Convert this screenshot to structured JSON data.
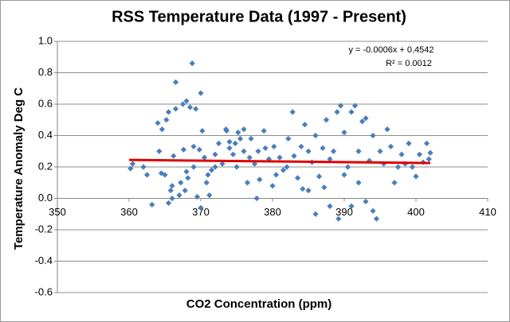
{
  "chart_data": {
    "type": "scatter",
    "title": "RSS Temperature Data (1997 - Present)",
    "x_label": "CO2 Concentration (ppm)",
    "y_label": "Temperature Anomaly Deg C",
    "annotations": [
      "y = -0.0006x + 0.4542",
      "R² = 0.0012"
    ],
    "color": "#4a7ebb",
    "x": [
      360.2,
      360.5,
      362,
      362.5,
      363.2,
      364,
      364.2,
      364.5,
      364.6,
      365,
      365.2,
      365.5,
      365.8,
      365.5,
      366,
      366,
      366.2,
      366.5,
      366.5,
      367,
      367.2,
      367.5,
      367.6,
      367.8,
      368,
      368,
      368.2,
      368.5,
      368.8,
      369,
      369,
      369.3,
      369.5,
      369.8,
      370,
      370,
      370.2,
      370.5,
      370.8,
      371,
      371.2,
      371.5,
      372,
      372,
      372.5,
      373,
      373.5,
      373.6,
      374,
      374,
      374.5,
      374.8,
      375,
      375.2,
      375.5,
      376,
      376,
      376.5,
      376.8,
      377,
      377.5,
      377.8,
      378,
      378.2,
      378.8,
      379,
      379.5,
      380,
      380.2,
      380.5,
      381,
      381.5,
      382,
      382.2,
      382.8,
      383,
      383.5,
      384,
      384.2,
      384.5,
      385,
      385,
      385.5,
      386,
      386,
      386.5,
      387,
      387.2,
      387.5,
      388,
      388,
      388.5,
      389,
      389.2,
      389.5,
      390,
      390,
      390.5,
      391,
      391,
      391.5,
      392,
      392,
      392.5,
      393,
      393,
      393.5,
      394,
      394,
      394.5,
      395,
      395.5,
      396,
      396.5,
      397,
      397.5,
      398,
      398.5,
      399,
      399.5,
      400,
      400.5,
      401,
      401.5,
      402,
      401.8
    ],
    "values": [
      0.19,
      0.22,
      0.2,
      0.15,
      -0.04,
      0.48,
      0.3,
      0.16,
      0.44,
      0.15,
      0.5,
      0.55,
      0.05,
      -0.03,
      0.0,
      0.08,
      0.27,
      0.74,
      0.57,
      0.02,
      0.1,
      0.6,
      0.31,
      0.05,
      0.62,
      0.17,
      0.13,
      0.58,
      0.86,
      0.33,
      0.2,
      0.57,
      0.01,
      0.31,
      0.67,
      -0.06,
      0.43,
      0.26,
      0.1,
      0.15,
      0.02,
      0.18,
      0.28,
      0.2,
      0.35,
      0.22,
      0.44,
      0.43,
      0.36,
      0.32,
      0.28,
      0.35,
      0.2,
      0.42,
      0.38,
      0.44,
      0.3,
      0.1,
      0.26,
      0.38,
      0.22,
      0.0,
      0.3,
      0.12,
      0.43,
      0.32,
      0.25,
      0.08,
      0.33,
      0.15,
      0.26,
      0.18,
      0.2,
      0.38,
      0.55,
      0.27,
      0.13,
      0.33,
      0.06,
      0.47,
      0.05,
      0.3,
      0.23,
      -0.1,
      0.4,
      0.14,
      0.32,
      0.07,
      0.5,
      0.25,
      -0.05,
      0.3,
      0.55,
      -0.13,
      0.59,
      0.15,
      0.42,
      0.2,
      0.55,
      -0.05,
      0.59,
      0.1,
      0.3,
      0.49,
      0.51,
      -0.02,
      0.24,
      -0.08,
      0.4,
      -0.13,
      0.3,
      0.22,
      0.44,
      0.33,
      0.1,
      0.2,
      0.28,
      0.22,
      0.35,
      0.2,
      0.14,
      0.28,
      0.23,
      0.35,
      0.29,
      0.25
    ],
    "trendline": {
      "color": "#e00000",
      "x": [
        360,
        402
      ],
      "values": [
        0.245,
        0.225
      ]
    },
    "xlim": [
      350,
      410
    ],
    "xticks": [
      350,
      360,
      370,
      380,
      390,
      400,
      410
    ],
    "ylim": [
      -0.6,
      1.0
    ],
    "yticks": [
      {
        "value": 1.0,
        "label": "1.0"
      },
      0.8,
      0.6,
      0.4,
      0.2,
      {
        "value": 0,
        "label": "0.0"
      },
      -0.2,
      -0.4,
      -0.6
    ],
    "grid": true
  }
}
